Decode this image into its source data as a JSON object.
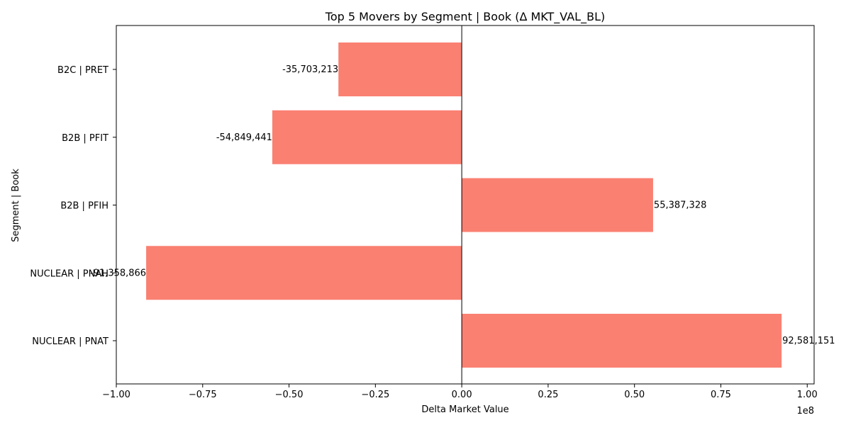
{
  "chart_data": {
    "type": "bar",
    "orientation": "horizontal",
    "title": "Top 5 Movers by Segment | Book (Δ MKT_VAL_BL)",
    "xlabel": "Delta Market Value",
    "ylabel": "Segment | Book",
    "x_scale_note": "1e8",
    "categories": [
      "B2C | PRET",
      "B2B | PFIT",
      "B2B | PFIH",
      "NUCLEAR | PNAH",
      "NUCLEAR | PNAT"
    ],
    "values": [
      -35703213,
      -54849441,
      55387328,
      -91358866,
      92581151
    ],
    "value_labels": [
      "-35,703,213",
      "-54,849,441",
      "55,387,328",
      "-91,358,866",
      "92,581,151"
    ],
    "xlim": [
      -1.0,
      1.02
    ],
    "xticks": [
      -1.0,
      -0.75,
      -0.5,
      -0.25,
      0.0,
      0.25,
      0.5,
      0.75,
      1.0
    ],
    "xtick_labels": [
      "−1.00",
      "−0.75",
      "−0.50",
      "−0.25",
      "0.00",
      "0.25",
      "0.50",
      "0.75",
      "1.00"
    ],
    "bar_color": "#fa8072",
    "grid": false,
    "legend": "none"
  }
}
